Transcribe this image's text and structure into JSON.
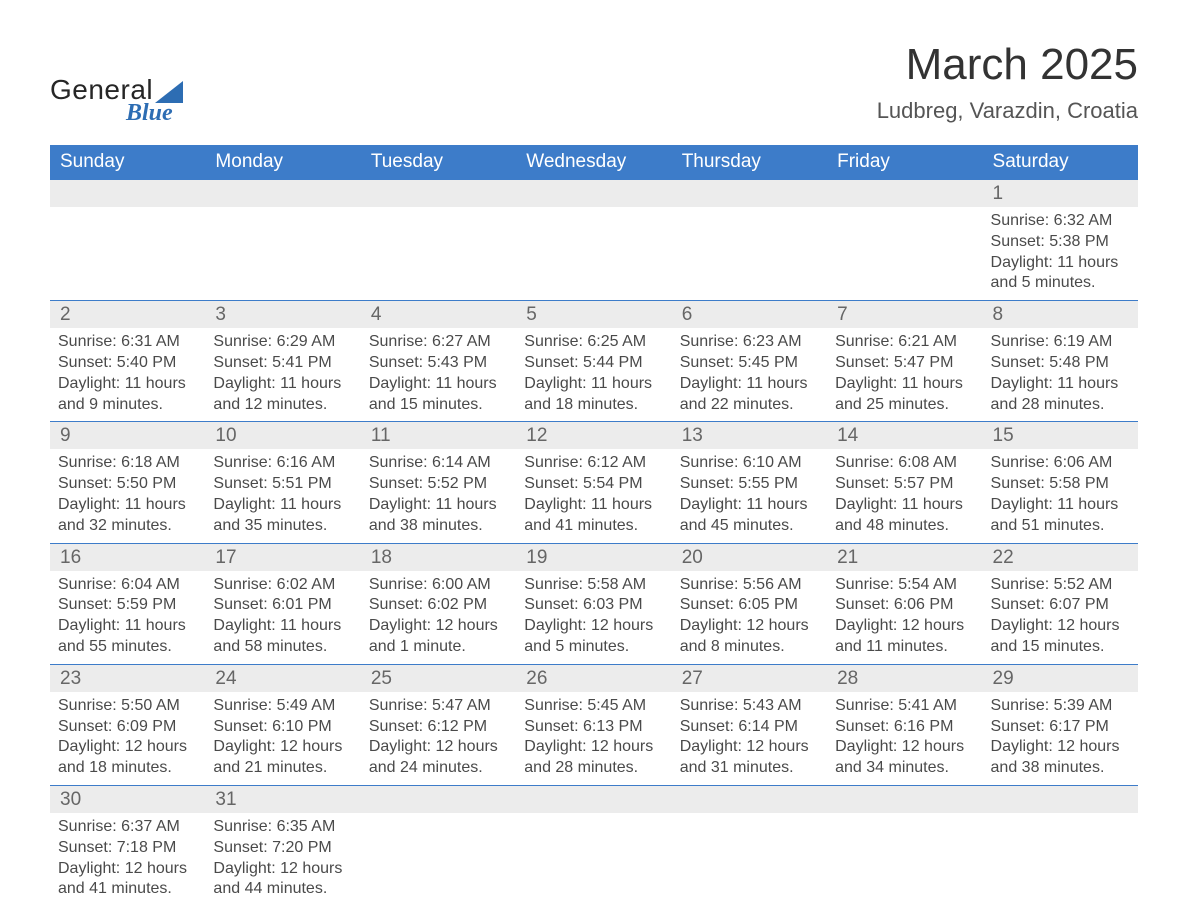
{
  "logo": {
    "text1": "General",
    "text2": "Blue"
  },
  "header": {
    "title": "March 2025",
    "subtitle": "Ludbreg, Varazdin, Croatia"
  },
  "colors": {
    "header_bg": "#3d7cc9",
    "header_text": "#ffffff",
    "daynum_bg": "#ececec",
    "border": "#3d7cc9",
    "text": "#4a4a4a",
    "title": "#333333",
    "logo_blue": "#2d6db3"
  },
  "typography": {
    "title_fontsize": 44,
    "subtitle_fontsize": 22,
    "header_fontsize": 19,
    "daynum_fontsize": 19,
    "body_fontsize": 16
  },
  "weekdays": [
    "Sunday",
    "Monday",
    "Tuesday",
    "Wednesday",
    "Thursday",
    "Friday",
    "Saturday"
  ],
  "labels": {
    "sunrise": "Sunrise:",
    "sunset": "Sunset:",
    "daylight": "Daylight:"
  },
  "weeks": [
    [
      null,
      null,
      null,
      null,
      null,
      null,
      {
        "day": "1",
        "sunrise": "6:32 AM",
        "sunset": "5:38 PM",
        "daylight": "11 hours and 5 minutes."
      }
    ],
    [
      {
        "day": "2",
        "sunrise": "6:31 AM",
        "sunset": "5:40 PM",
        "daylight": "11 hours and 9 minutes."
      },
      {
        "day": "3",
        "sunrise": "6:29 AM",
        "sunset": "5:41 PM",
        "daylight": "11 hours and 12 minutes."
      },
      {
        "day": "4",
        "sunrise": "6:27 AM",
        "sunset": "5:43 PM",
        "daylight": "11 hours and 15 minutes."
      },
      {
        "day": "5",
        "sunrise": "6:25 AM",
        "sunset": "5:44 PM",
        "daylight": "11 hours and 18 minutes."
      },
      {
        "day": "6",
        "sunrise": "6:23 AM",
        "sunset": "5:45 PM",
        "daylight": "11 hours and 22 minutes."
      },
      {
        "day": "7",
        "sunrise": "6:21 AM",
        "sunset": "5:47 PM",
        "daylight": "11 hours and 25 minutes."
      },
      {
        "day": "8",
        "sunrise": "6:19 AM",
        "sunset": "5:48 PM",
        "daylight": "11 hours and 28 minutes."
      }
    ],
    [
      {
        "day": "9",
        "sunrise": "6:18 AM",
        "sunset": "5:50 PM",
        "daylight": "11 hours and 32 minutes."
      },
      {
        "day": "10",
        "sunrise": "6:16 AM",
        "sunset": "5:51 PM",
        "daylight": "11 hours and 35 minutes."
      },
      {
        "day": "11",
        "sunrise": "6:14 AM",
        "sunset": "5:52 PM",
        "daylight": "11 hours and 38 minutes."
      },
      {
        "day": "12",
        "sunrise": "6:12 AM",
        "sunset": "5:54 PM",
        "daylight": "11 hours and 41 minutes."
      },
      {
        "day": "13",
        "sunrise": "6:10 AM",
        "sunset": "5:55 PM",
        "daylight": "11 hours and 45 minutes."
      },
      {
        "day": "14",
        "sunrise": "6:08 AM",
        "sunset": "5:57 PM",
        "daylight": "11 hours and 48 minutes."
      },
      {
        "day": "15",
        "sunrise": "6:06 AM",
        "sunset": "5:58 PM",
        "daylight": "11 hours and 51 minutes."
      }
    ],
    [
      {
        "day": "16",
        "sunrise": "6:04 AM",
        "sunset": "5:59 PM",
        "daylight": "11 hours and 55 minutes."
      },
      {
        "day": "17",
        "sunrise": "6:02 AM",
        "sunset": "6:01 PM",
        "daylight": "11 hours and 58 minutes."
      },
      {
        "day": "18",
        "sunrise": "6:00 AM",
        "sunset": "6:02 PM",
        "daylight": "12 hours and 1 minute."
      },
      {
        "day": "19",
        "sunrise": "5:58 AM",
        "sunset": "6:03 PM",
        "daylight": "12 hours and 5 minutes."
      },
      {
        "day": "20",
        "sunrise": "5:56 AM",
        "sunset": "6:05 PM",
        "daylight": "12 hours and 8 minutes."
      },
      {
        "day": "21",
        "sunrise": "5:54 AM",
        "sunset": "6:06 PM",
        "daylight": "12 hours and 11 minutes."
      },
      {
        "day": "22",
        "sunrise": "5:52 AM",
        "sunset": "6:07 PM",
        "daylight": "12 hours and 15 minutes."
      }
    ],
    [
      {
        "day": "23",
        "sunrise": "5:50 AM",
        "sunset": "6:09 PM",
        "daylight": "12 hours and 18 minutes."
      },
      {
        "day": "24",
        "sunrise": "5:49 AM",
        "sunset": "6:10 PM",
        "daylight": "12 hours and 21 minutes."
      },
      {
        "day": "25",
        "sunrise": "5:47 AM",
        "sunset": "6:12 PM",
        "daylight": "12 hours and 24 minutes."
      },
      {
        "day": "26",
        "sunrise": "5:45 AM",
        "sunset": "6:13 PM",
        "daylight": "12 hours and 28 minutes."
      },
      {
        "day": "27",
        "sunrise": "5:43 AM",
        "sunset": "6:14 PM",
        "daylight": "12 hours and 31 minutes."
      },
      {
        "day": "28",
        "sunrise": "5:41 AM",
        "sunset": "6:16 PM",
        "daylight": "12 hours and 34 minutes."
      },
      {
        "day": "29",
        "sunrise": "5:39 AM",
        "sunset": "6:17 PM",
        "daylight": "12 hours and 38 minutes."
      }
    ],
    [
      {
        "day": "30",
        "sunrise": "6:37 AM",
        "sunset": "7:18 PM",
        "daylight": "12 hours and 41 minutes."
      },
      {
        "day": "31",
        "sunrise": "6:35 AM",
        "sunset": "7:20 PM",
        "daylight": "12 hours and 44 minutes."
      },
      null,
      null,
      null,
      null,
      null
    ]
  ]
}
